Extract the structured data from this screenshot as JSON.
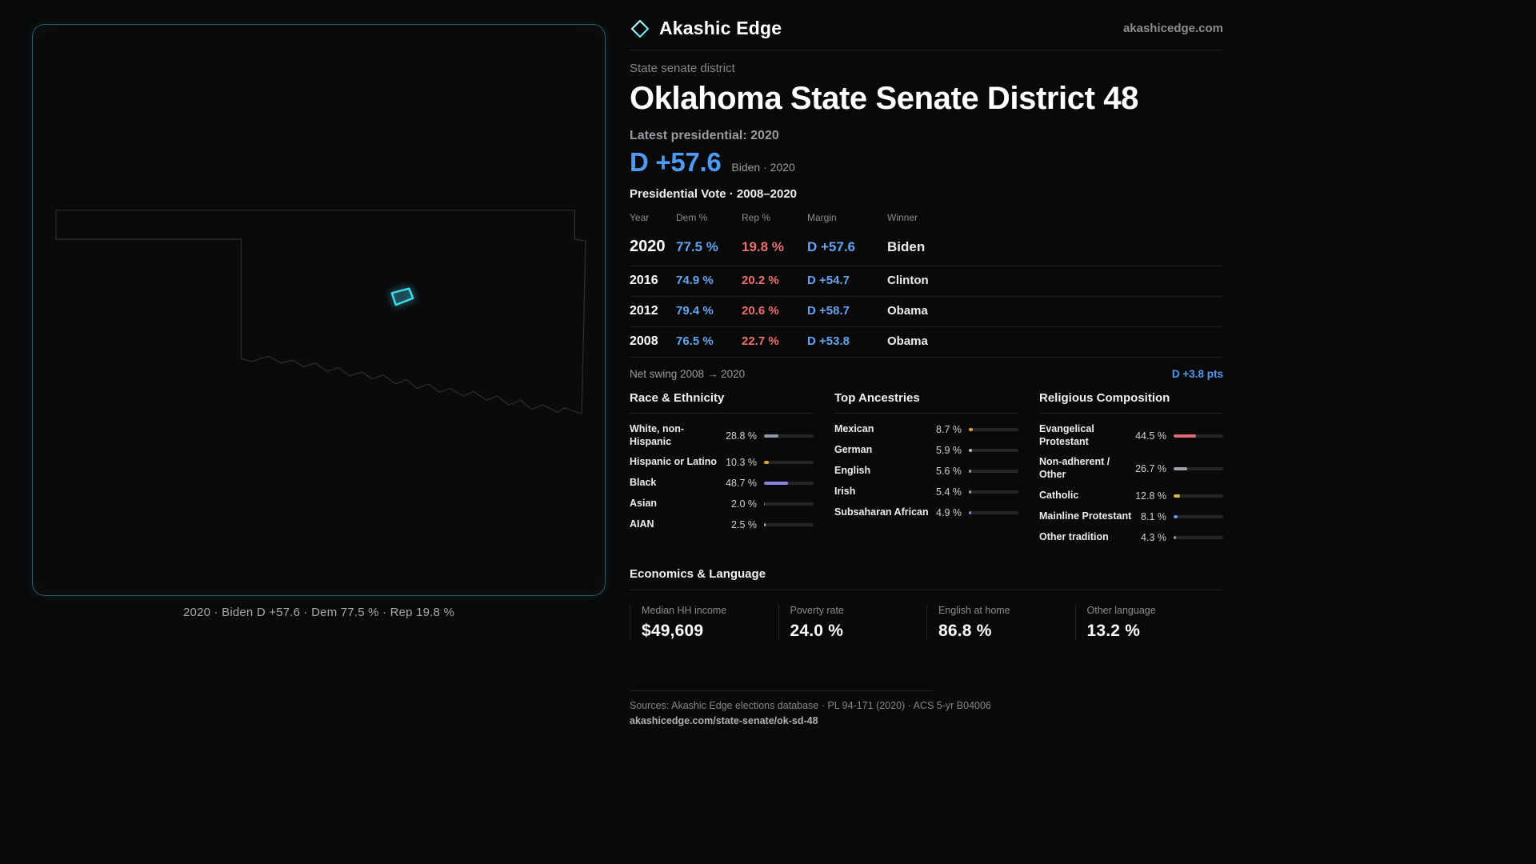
{
  "brand": {
    "name": "Akashic Edge",
    "domain": "akashicedge.com"
  },
  "map": {
    "caption": "2020 · Biden D +57.6 · Dem 77.5 % · Rep 19.8 %"
  },
  "header": {
    "kicker": "State senate district",
    "title": "Oklahoma State Senate District 48",
    "latest_label": "Latest presidential: 2020",
    "headline_margin": "D +57.6",
    "headline_sub": "Biden · 2020"
  },
  "vote_table": {
    "title": "Presidential Vote · 2008–2020",
    "columns": {
      "year": "Year",
      "dem": "Dem %",
      "rep": "Rep %",
      "margin": "Margin",
      "winner": "Winner"
    },
    "rows": [
      {
        "year": "2020",
        "dem": "77.5 %",
        "rep": "19.8 %",
        "margin": "D +57.6",
        "winner": "Biden"
      },
      {
        "year": "2016",
        "dem": "74.9 %",
        "rep": "20.2 %",
        "margin": "D +54.7",
        "winner": "Clinton"
      },
      {
        "year": "2012",
        "dem": "79.4 %",
        "rep": "20.6 %",
        "margin": "D +58.7",
        "winner": "Obama"
      },
      {
        "year": "2008",
        "dem": "76.5 %",
        "rep": "22.7 %",
        "margin": "D +53.8",
        "winner": "Obama"
      }
    ],
    "net_swing_label": "Net swing 2008 → 2020",
    "net_swing_value": "D +3.8 pts"
  },
  "sections": {
    "race": {
      "title": "Race & Ethnicity",
      "items": [
        {
          "label": "White, non-Hispanic",
          "value": "28.8 %",
          "pct": 28.8,
          "color": "#8e99ad"
        },
        {
          "label": "Hispanic or Latino",
          "value": "10.3 %",
          "pct": 10.3,
          "color": "#e0a33c"
        },
        {
          "label": "Black",
          "value": "48.7 %",
          "pct": 48.7,
          "color": "#8d83e3"
        },
        {
          "label": "Asian",
          "value": "2.0 %",
          "pct": 2.0,
          "color": "#3fae6e"
        },
        {
          "label": "AIAN",
          "value": "2.5 %",
          "pct": 2.5,
          "color": "#d8c84a"
        }
      ]
    },
    "ancestries": {
      "title": "Top Ancestries",
      "items": [
        {
          "label": "Mexican",
          "value": "8.7 %",
          "pct": 8.7,
          "color": "#e0a33c"
        },
        {
          "label": "German",
          "value": "5.9 %",
          "pct": 5.9,
          "color": "#b9bfca"
        },
        {
          "label": "English",
          "value": "5.6 %",
          "pct": 5.6,
          "color": "#9aa0ac"
        },
        {
          "label": "Irish",
          "value": "5.4 %",
          "pct": 5.4,
          "color": "#9aa0ac"
        },
        {
          "label": "Subsaharan African",
          "value": "4.9 %",
          "pct": 4.9,
          "color": "#8d83e3"
        }
      ]
    },
    "religion": {
      "title": "Religious Composition",
      "items": [
        {
          "label": "Evangelical Protestant",
          "value": "44.5 %",
          "pct": 44.5,
          "color": "#e06c75"
        },
        {
          "label": "Non-adherent / Other",
          "value": "26.7 %",
          "pct": 26.7,
          "color": "#9aa0ac"
        },
        {
          "label": "Catholic",
          "value": "12.8 %",
          "pct": 12.8,
          "color": "#e0b83c"
        },
        {
          "label": "Mainline Protestant",
          "value": "8.1 %",
          "pct": 8.1,
          "color": "#5b9ef5"
        },
        {
          "label": "Other tradition",
          "value": "4.3 %",
          "pct": 4.3,
          "color": "#9aa0ac"
        }
      ]
    }
  },
  "economics": {
    "title": "Economics & Language",
    "stats": [
      {
        "label": "Median HH income",
        "value": "$49,609"
      },
      {
        "label": "Poverty rate",
        "value": "24.0 %"
      },
      {
        "label": "English at home",
        "value": "86.8 %"
      },
      {
        "label": "Other language",
        "value": "13.2 %"
      }
    ]
  },
  "footer": {
    "sources": "Sources: Akashic Edge elections database · PL 94-171 (2020) · ACS 5-yr B04006",
    "permalink": "akashicedge.com/state-senate/ok-sd-48"
  },
  "colors": {
    "accent_cyan": "#3fd9f0",
    "dem_blue": "#4f9af5",
    "rep_red": "#ea7070",
    "background": "#09090a"
  },
  "chart_data": [
    {
      "type": "table",
      "title": "Presidential Vote · 2008–2020",
      "columns": [
        "Year",
        "Dem %",
        "Rep %",
        "Margin",
        "Winner"
      ],
      "rows": [
        [
          "2020",
          77.5,
          19.8,
          "D +57.6",
          "Biden"
        ],
        [
          "2016",
          74.9,
          20.2,
          "D +54.7",
          "Clinton"
        ],
        [
          "2012",
          79.4,
          20.6,
          "D +58.7",
          "Obama"
        ],
        [
          "2008",
          76.5,
          22.7,
          "D +53.8",
          "Obama"
        ]
      ],
      "annotations": [
        "Net swing 2008 → 2020: D +3.8 pts",
        "Latest presidential 2020: D +57.6 (Biden)"
      ]
    },
    {
      "type": "bar",
      "orientation": "horizontal",
      "title": "Race & Ethnicity",
      "categories": [
        "White, non-Hispanic",
        "Hispanic or Latino",
        "Black",
        "Asian",
        "AIAN"
      ],
      "values": [
        28.8,
        10.3,
        48.7,
        2.0,
        2.5
      ],
      "unit": "%",
      "xlim": [
        0,
        100
      ]
    },
    {
      "type": "bar",
      "orientation": "horizontal",
      "title": "Top Ancestries",
      "categories": [
        "Mexican",
        "German",
        "English",
        "Irish",
        "Subsaharan African"
      ],
      "values": [
        8.7,
        5.9,
        5.6,
        5.4,
        4.9
      ],
      "unit": "%",
      "xlim": [
        0,
        100
      ]
    },
    {
      "type": "bar",
      "orientation": "horizontal",
      "title": "Religious Composition",
      "categories": [
        "Evangelical Protestant",
        "Non-adherent / Other",
        "Catholic",
        "Mainline Protestant",
        "Other tradition"
      ],
      "values": [
        44.5,
        26.7,
        12.8,
        8.1,
        4.3
      ],
      "unit": "%",
      "xlim": [
        0,
        100
      ]
    }
  ]
}
